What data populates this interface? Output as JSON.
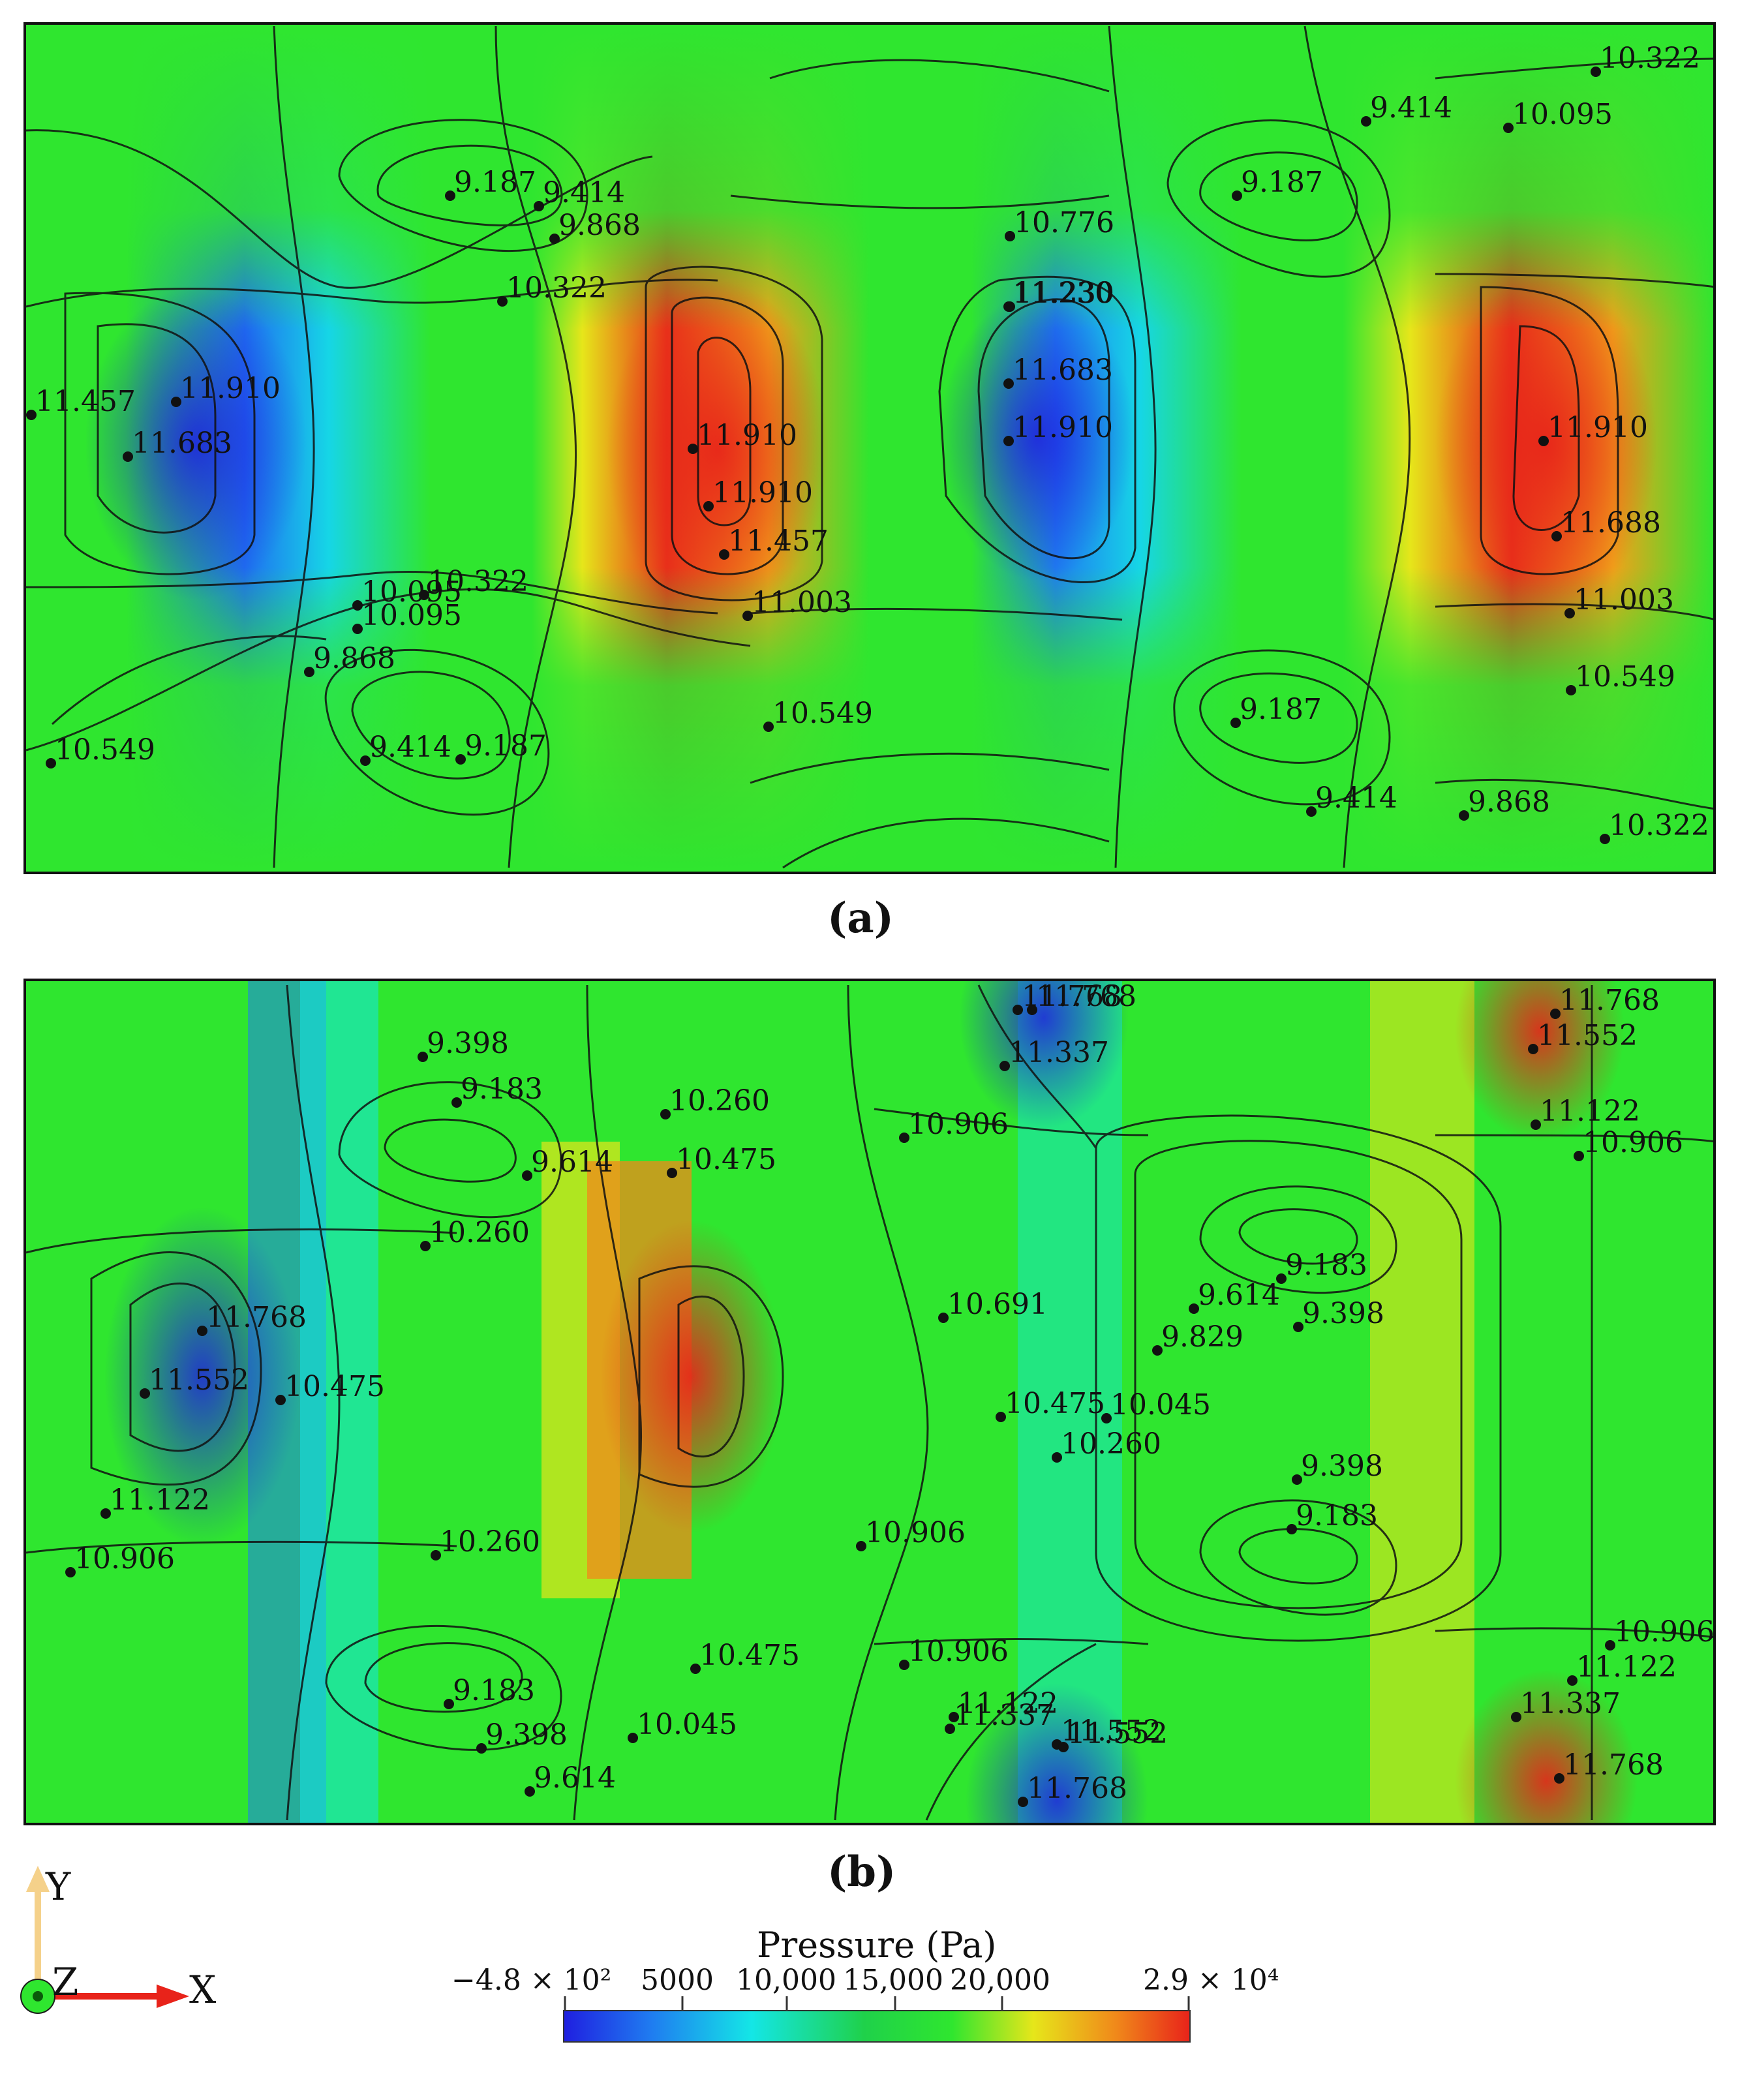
{
  "panels": [
    {
      "id": "a",
      "label": "(a)",
      "contour_labels": [
        [
          "9.187",
          "9.414",
          "9.868",
          "10.322",
          "10.776",
          "11.230",
          "11.457",
          "11.683",
          "11.910",
          "10.549",
          "10.095",
          "9.414",
          "9.187"
        ],
        [
          "11.910",
          "11.910",
          "11.457",
          "11.003",
          "10.549",
          "10.776",
          "11.230",
          "11.683",
          "11.910",
          "9.187",
          "9.414",
          "10.095",
          "10.322",
          "11.910",
          "11.688",
          "11.003",
          "10.549",
          "9.187",
          "9.414",
          "9.868",
          "10.322",
          "10.322",
          "10.095",
          "9.868"
        ]
      ]
    },
    {
      "id": "b",
      "label": "(b)",
      "contour_labels": [
        [
          "9.398",
          "9.183",
          "10.260",
          "9.614",
          "10.475",
          "10.260",
          "11.768",
          "11.552",
          "10.475",
          "11.122",
          "10.906",
          "10.260",
          "9.183",
          "9.398",
          "9.614",
          "10.045",
          "10.475"
        ],
        [
          "11.768",
          "11.337",
          "10.906",
          "11.768",
          "11.552",
          "11.122",
          "10.906",
          "10.691",
          "9.614",
          "9.183",
          "9.398",
          "9.829",
          "10.475",
          "10.045",
          "10.260",
          "9.398",
          "9.183",
          "11.768",
          "11.552",
          "11.337",
          "10.906",
          "10.906",
          "11.122",
          "11.552",
          "11.768",
          "10.906",
          "11.122",
          "11.337",
          "11.768"
        ]
      ]
    }
  ],
  "colorbar": {
    "title": "Pressure (Pa)",
    "min_label": "−4.8 × 10²",
    "max_label": "2.9 × 10⁴",
    "ticks": [
      "5000",
      "10,000",
      "15,000",
      "20,000"
    ],
    "colors": [
      "#1f1fe0",
      "#1f7cf0",
      "#14e6e6",
      "#1fd14a",
      "#2fe62f",
      "#e6e61a",
      "#f08a1a",
      "#e8231a"
    ]
  },
  "axes": {
    "y_label": "Y",
    "x_label": "X",
    "z_label": "Z",
    "x_color": "#e8231a",
    "y_color": "#f5d18a",
    "z_color": "#2fe62f"
  }
}
